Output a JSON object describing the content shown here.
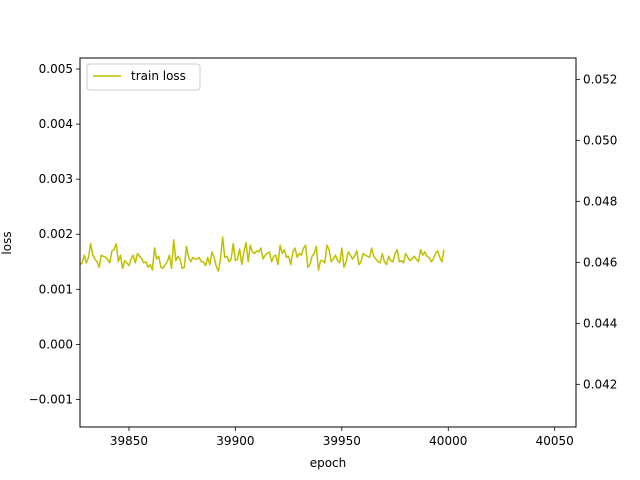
{
  "chart_data": {
    "type": "line",
    "title": "",
    "xlabel": "epoch",
    "ylabel": "loss",
    "xlim": [
      39827,
      40060
    ],
    "ylim": [
      -0.0015,
      0.0052
    ],
    "y2lim": [
      0.0406,
      0.0527
    ],
    "grid": false,
    "legend_position": "top-left",
    "x_ticks": [
      39850,
      39900,
      39950,
      40000,
      40050
    ],
    "x_tick_labels": [
      "39850",
      "39900",
      "39950",
      "40000",
      "40050"
    ],
    "y_ticks": [
      -0.001,
      0.0,
      0.001,
      0.002,
      0.003,
      0.004,
      0.005
    ],
    "y_tick_labels": [
      "−0.001",
      "0.000",
      "0.001",
      "0.002",
      "0.003",
      "0.004",
      "0.005"
    ],
    "y2_ticks": [
      0.042,
      0.044,
      0.046,
      0.048,
      0.05,
      0.052
    ],
    "y2_tick_labels": [
      "0.042",
      "0.044",
      "0.046",
      "0.048",
      "0.050",
      "0.052"
    ],
    "series": [
      {
        "name": "train loss",
        "color": "#bfbf00",
        "x_start": 39827,
        "x_step": 1,
        "values": [
          0.00145,
          0.00148,
          0.00162,
          0.00148,
          0.00158,
          0.00183,
          0.00162,
          0.00155,
          0.0015,
          0.0014,
          0.00162,
          0.0016,
          0.00158,
          0.00154,
          0.00148,
          0.0017,
          0.00172,
          0.00183,
          0.0015,
          0.00162,
          0.00138,
          0.00152,
          0.00148,
          0.00143,
          0.00155,
          0.00162,
          0.00148,
          0.00165,
          0.0016,
          0.00155,
          0.00148,
          0.0015,
          0.0014,
          0.00145,
          0.00135,
          0.00175,
          0.00155,
          0.0016,
          0.0014,
          0.00138,
          0.00145,
          0.0015,
          0.00162,
          0.00138,
          0.0019,
          0.00152,
          0.0016,
          0.00155,
          0.00138,
          0.0014,
          0.00178,
          0.00158,
          0.0015,
          0.00158,
          0.00155,
          0.00155,
          0.00158,
          0.0015,
          0.0015,
          0.00143,
          0.00158,
          0.00145,
          0.00168,
          0.00158,
          0.00142,
          0.00133,
          0.00155,
          0.00195,
          0.00158,
          0.0016,
          0.0015,
          0.00155,
          0.00183,
          0.00152,
          0.00155,
          0.00173,
          0.00145,
          0.00168,
          0.00185,
          0.0015,
          0.0018,
          0.00168,
          0.00165,
          0.0017,
          0.00168,
          0.00175,
          0.00155,
          0.00162,
          0.00165,
          0.00168,
          0.0015,
          0.0016,
          0.00162,
          0.00145,
          0.0018,
          0.00165,
          0.00172,
          0.00158,
          0.0016,
          0.00145,
          0.00168,
          0.00175,
          0.00158,
          0.00165,
          0.00162,
          0.00175,
          0.0018,
          0.0014,
          0.00145,
          0.0016,
          0.00165,
          0.00178,
          0.00135,
          0.00152,
          0.00152,
          0.00148,
          0.0018,
          0.00172,
          0.0015,
          0.00155,
          0.00162,
          0.00152,
          0.00148,
          0.00175,
          0.0014,
          0.0015,
          0.00168,
          0.00162,
          0.00155,
          0.0016,
          0.0017,
          0.00145,
          0.0015,
          0.00165,
          0.00162,
          0.0016,
          0.00158,
          0.00175,
          0.0016,
          0.00155,
          0.0015,
          0.00148,
          0.00165,
          0.0015,
          0.00145,
          0.0016,
          0.00152,
          0.0015,
          0.00165,
          0.00172,
          0.0015,
          0.00152,
          0.00148,
          0.00165,
          0.00158,
          0.00152,
          0.00155,
          0.0016,
          0.00155,
          0.0015,
          0.00172,
          0.00162,
          0.00168,
          0.0016,
          0.00158,
          0.0015,
          0.00155,
          0.00165,
          0.0017,
          0.00158,
          0.0015,
          0.00172
        ]
      }
    ]
  }
}
